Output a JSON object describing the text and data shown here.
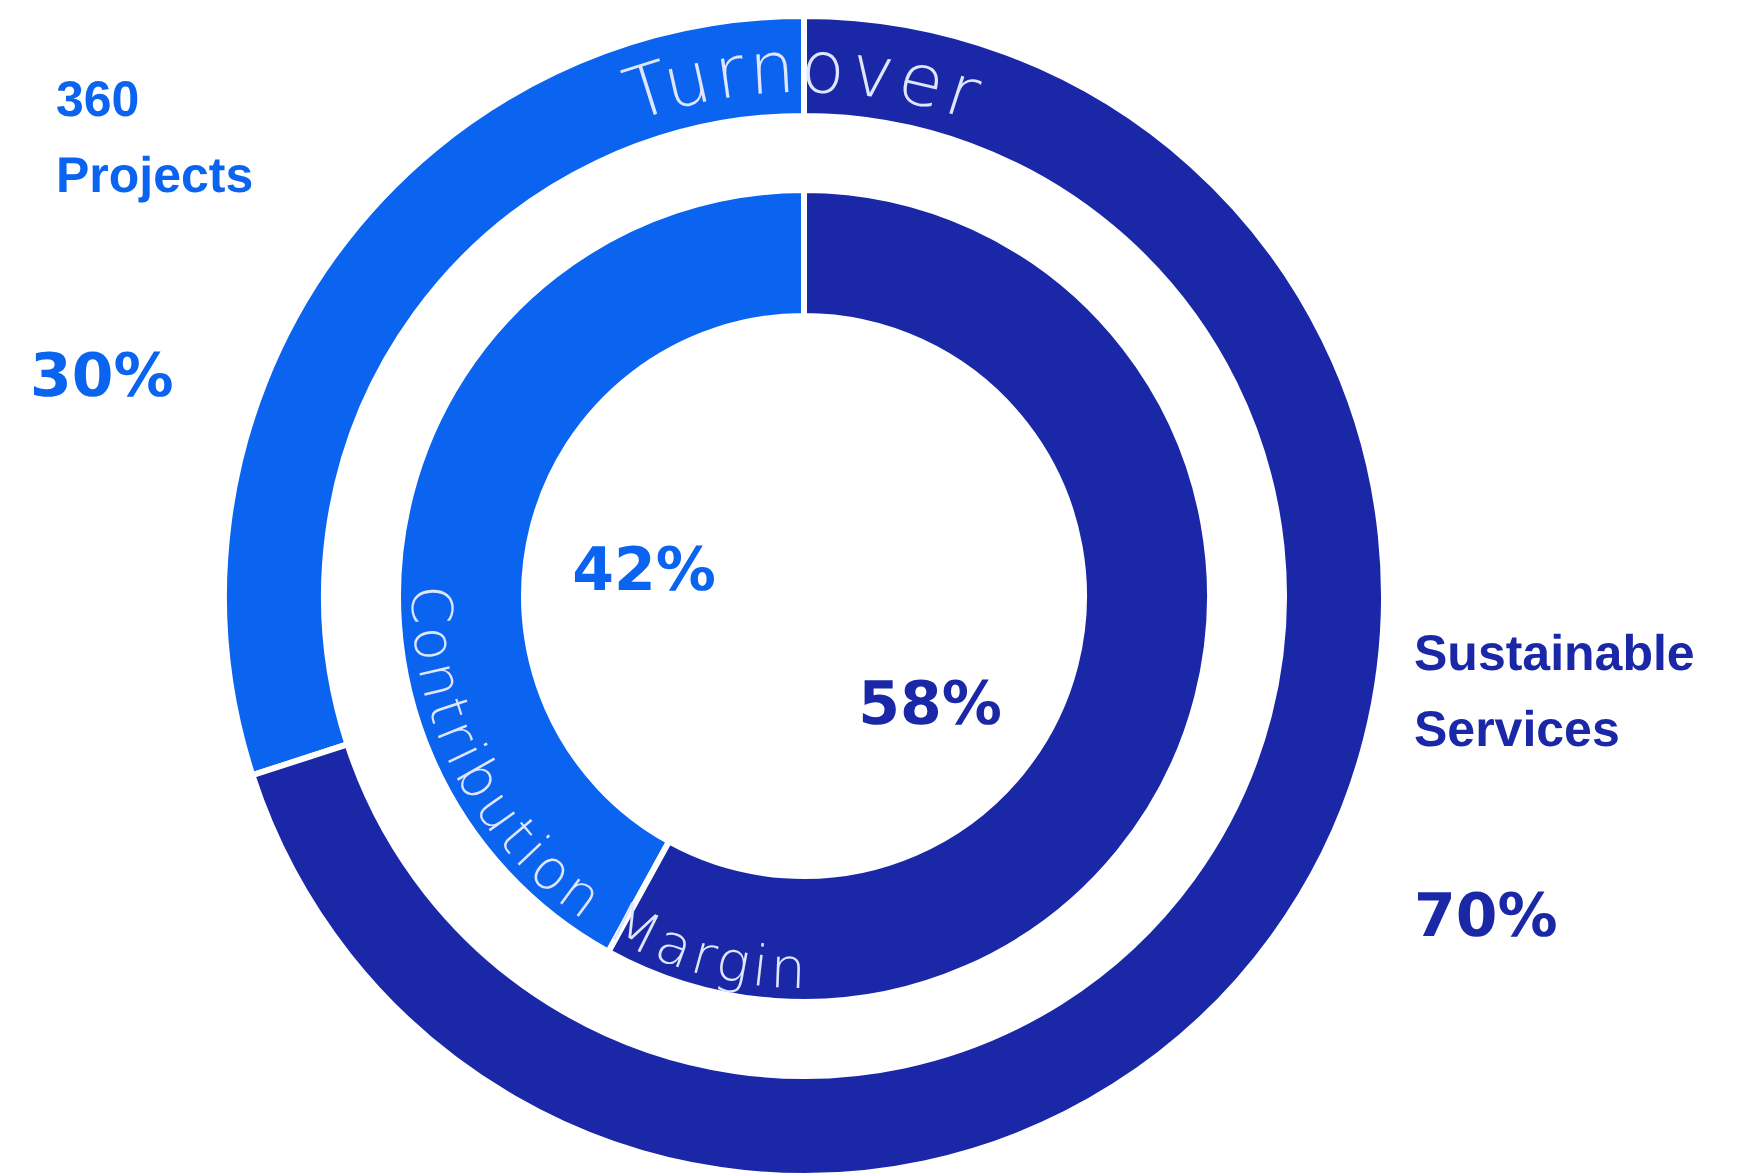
{
  "chart_data": [
    {
      "type": "donut",
      "title": "Turnover",
      "categories": [
        "360 Projects",
        "Sustainable Services"
      ],
      "values": [
        30,
        70
      ],
      "colors": [
        "#0a64f0",
        "#1a28a8"
      ],
      "value_labels": [
        "30%",
        "70%"
      ]
    },
    {
      "type": "donut",
      "title": "Contribution Margin",
      "categories": [
        null,
        null
      ],
      "values": [
        42,
        58
      ],
      "colors": [
        "#0a64f0",
        "#1a28a8"
      ],
      "value_labels": [
        "42%",
        "58%"
      ]
    }
  ]
}
